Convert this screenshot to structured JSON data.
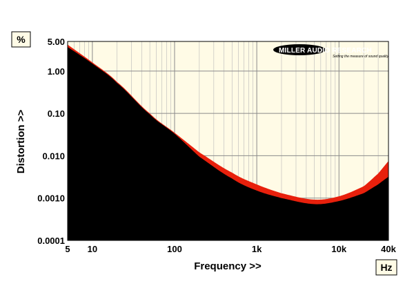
{
  "chart_data": {
    "type": "area",
    "x_scale": "log",
    "y_scale": "log",
    "xlim": [
      5,
      40000
    ],
    "ylim": [
      0.0001,
      5
    ],
    "xlabel": "Frequency >>",
    "ylabel": "Distortion >>",
    "x_unit": "Hz",
    "y_unit": "%",
    "x_ticks": [
      {
        "value": 5,
        "label": "5"
      },
      {
        "value": 10,
        "label": "10"
      },
      {
        "value": 100,
        "label": "100"
      },
      {
        "value": 1000,
        "label": "1k"
      },
      {
        "value": 10000,
        "label": "10k"
      },
      {
        "value": 40000,
        "label": "40k"
      }
    ],
    "y_ticks": [
      {
        "value": 5,
        "label": "5.00"
      },
      {
        "value": 1,
        "label": "1.00"
      },
      {
        "value": 0.1,
        "label": "0.10"
      },
      {
        "value": 0.01,
        "label": "0.010"
      },
      {
        "value": 0.001,
        "label": "0.0010"
      },
      {
        "value": 0.0001,
        "label": "0.0001"
      }
    ],
    "grid": true,
    "background_color": "#fffbe6",
    "series": [
      {
        "color": "#e8200c",
        "x": [
          5,
          10,
          20,
          50,
          100,
          200,
          500,
          1000,
          2000,
          5000,
          10000,
          20000,
          30000,
          40000
        ],
        "y": [
          4.2,
          1.6,
          0.55,
          0.1,
          0.035,
          0.012,
          0.004,
          0.0021,
          0.0013,
          0.00092,
          0.0011,
          0.0019,
          0.0038,
          0.0075
        ]
      },
      {
        "color": "#000000",
        "x": [
          5,
          10,
          20,
          50,
          100,
          200,
          500,
          1000,
          2000,
          5000,
          10000,
          20000,
          30000,
          40000
        ],
        "y": [
          3.7,
          1.5,
          0.52,
          0.095,
          0.033,
          0.0095,
          0.0029,
          0.0015,
          0.001,
          0.00072,
          0.00085,
          0.0013,
          0.0021,
          0.0032
        ]
      }
    ],
    "logo": {
      "name": "MILLER AUDIO RESEARCH",
      "tagline": "Setting the measure of sound quality"
    }
  }
}
